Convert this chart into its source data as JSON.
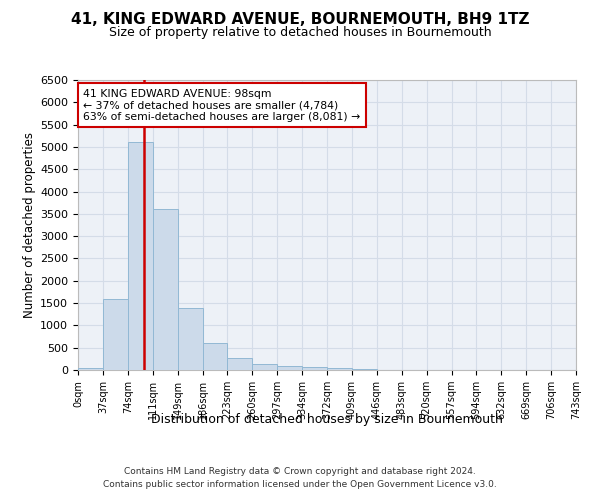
{
  "title": "41, KING EDWARD AVENUE, BOURNEMOUTH, BH9 1TZ",
  "subtitle": "Size of property relative to detached houses in Bournemouth",
  "xlabel": "Distribution of detached houses by size in Bournemouth",
  "ylabel": "Number of detached properties",
  "bin_edges": [
    0,
    37,
    74,
    111,
    148,
    185,
    222,
    259,
    296,
    333,
    370,
    407,
    444,
    481,
    518,
    555,
    592,
    629,
    666,
    703,
    740
  ],
  "bin_labels": [
    "0sqm",
    "37sqm",
    "74sqm",
    "111sqm",
    "149sqm",
    "186sqm",
    "223sqm",
    "260sqm",
    "297sqm",
    "334sqm",
    "372sqm",
    "409sqm",
    "446sqm",
    "483sqm",
    "520sqm",
    "557sqm",
    "594sqm",
    "632sqm",
    "669sqm",
    "706sqm",
    "743sqm"
  ],
  "counts": [
    50,
    1600,
    5100,
    3600,
    1400,
    600,
    270,
    130,
    100,
    65,
    40,
    18,
    8,
    4,
    2,
    1,
    0,
    0,
    0,
    0
  ],
  "bar_color": "#ccdaea",
  "bar_edge_color": "#92b8d4",
  "grid_color": "#d4dce8",
  "vline_x": 98,
  "vline_color": "#cc0000",
  "annotation_line1": "41 KING EDWARD AVENUE: 98sqm",
  "annotation_line2": "← 37% of detached houses are smaller (4,784)",
  "annotation_line3": "63% of semi-detached houses are larger (8,081) →",
  "annotation_box_facecolor": "#ffffff",
  "annotation_box_edgecolor": "#cc0000",
  "ylim": [
    0,
    6500
  ],
  "yticks": [
    0,
    500,
    1000,
    1500,
    2000,
    2500,
    3000,
    3500,
    4000,
    4500,
    5000,
    5500,
    6000,
    6500
  ],
  "bg_color": "#edf1f7",
  "footer_line1": "Contains HM Land Registry data © Crown copyright and database right 2024.",
  "footer_line2": "Contains public sector information licensed under the Open Government Licence v3.0."
}
